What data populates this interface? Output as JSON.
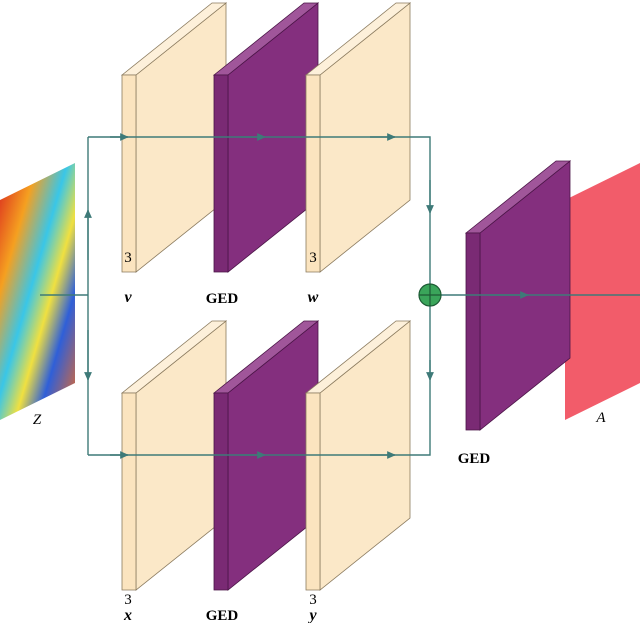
{
  "input": "Z",
  "output": "A",
  "branches": [
    {
      "left": {
        "channels": "3",
        "name": "v"
      },
      "middle": "GED",
      "right": {
        "channels": "3",
        "name": "w"
      }
    },
    {
      "left": {
        "channels": "3",
        "name": "x"
      },
      "middle": "GED",
      "right": {
        "channels": "3",
        "name": "y"
      }
    }
  ],
  "merge": "GED"
}
